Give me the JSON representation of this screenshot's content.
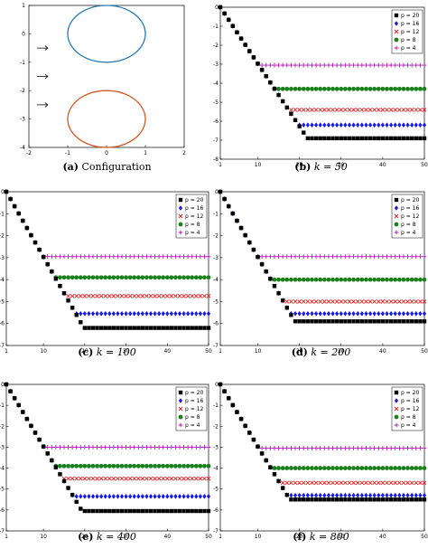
{
  "captions": [
    {
      "letter": "(a)",
      "text": "Configuration",
      "math": ""
    },
    {
      "letter": "(b)",
      "text": "",
      "math": "k = 50"
    },
    {
      "letter": "(c)",
      "text": "",
      "math": "k = 100"
    },
    {
      "letter": "(d)",
      "text": "",
      "math": "k = 200"
    },
    {
      "letter": "(e)",
      "text": "",
      "math": "k = 400"
    },
    {
      "letter": "(f)",
      "text": "",
      "math": "k = 800"
    }
  ],
  "legend_labels": [
    "p = 20",
    "p = 16",
    "p = 12",
    "p = 8",
    "p = 4"
  ],
  "colors": {
    "p20": "#000000",
    "p16": "#1a1ae6",
    "p12": "#e61a1a",
    "p8": "#1a801a",
    "p4": "#b319b3",
    "circle_top": "#2a7ab0",
    "circle_bottom": "#d05a28",
    "axis": "#000000"
  },
  "chart_data": [
    {
      "type": "scatter",
      "title": "Configuration",
      "xlim": [
        -2,
        2
      ],
      "ylim": [
        -4,
        1
      ],
      "xticks": [
        -2,
        -1,
        0,
        1,
        2
      ],
      "yticks": [
        1,
        0,
        -1,
        -2,
        -3,
        -4
      ],
      "circles": [
        {
          "name": "top",
          "cx": 0,
          "cy": 0,
          "r": 1
        },
        {
          "name": "bottom",
          "cx": 0,
          "cy": -3,
          "r": 1
        }
      ],
      "arrows": [
        {
          "x": -1.7,
          "y": -0.5
        },
        {
          "x": -1.7,
          "y": -1.5
        },
        {
          "x": -1.7,
          "y": -2.5
        }
      ]
    },
    {
      "type": "scatter",
      "k": 50,
      "xlim": [
        1,
        50
      ],
      "ylim": [
        -8,
        0
      ],
      "xticks": [
        1,
        10,
        20,
        30,
        40,
        50
      ],
      "yticks": [
        0,
        -1,
        -2,
        -3,
        -4,
        -5,
        -6,
        -7,
        -8
      ],
      "series": [
        {
          "name": "p = 20",
          "plateau": -6.9,
          "knee_at": 24
        },
        {
          "name": "p = 16",
          "plateau": -6.2,
          "knee_at": 22
        },
        {
          "name": "p = 12",
          "plateau": -5.4,
          "knee_at": 20
        },
        {
          "name": "p = 8",
          "plateau": -4.3,
          "knee_at": 15
        },
        {
          "name": "p = 4",
          "plateau": -3.05,
          "knee_at": 11
        }
      ],
      "initial_y": 0,
      "slope_per_step": -0.33
    },
    {
      "type": "scatter",
      "k": 100,
      "xlim": [
        1,
        50
      ],
      "ylim": [
        -7,
        0
      ],
      "xticks": [
        1,
        10,
        20,
        30,
        40,
        50
      ],
      "yticks": [
        0,
        -1,
        -2,
        -3,
        -4,
        -5,
        -6,
        -7
      ],
      "series": [
        {
          "name": "p = 20",
          "plateau": -6.2,
          "knee_at": 22
        },
        {
          "name": "p = 16",
          "plateau": -5.55,
          "knee_at": 19
        },
        {
          "name": "p = 12",
          "plateau": -4.75,
          "knee_at": 16
        },
        {
          "name": "p = 8",
          "plateau": -3.9,
          "knee_at": 13
        },
        {
          "name": "p = 4",
          "plateau": -2.95,
          "knee_at": 10
        }
      ],
      "initial_y": 0,
      "slope_per_step": -0.33
    },
    {
      "type": "scatter",
      "k": 200,
      "xlim": [
        1,
        50
      ],
      "ylim": [
        -7,
        0
      ],
      "xticks": [
        1,
        10,
        20,
        30,
        40,
        50
      ],
      "yticks": [
        0,
        -1,
        -2,
        -3,
        -4,
        -5,
        -6,
        -7
      ],
      "series": [
        {
          "name": "p = 20",
          "plateau": -5.9,
          "knee_at": 20
        },
        {
          "name": "p = 16",
          "plateau": -5.55,
          "knee_at": 19
        },
        {
          "name": "p = 12",
          "plateau": -5.0,
          "knee_at": 17
        },
        {
          "name": "p = 8",
          "plateau": -4.0,
          "knee_at": 14
        },
        {
          "name": "p = 4",
          "plateau": -2.95,
          "knee_at": 10
        }
      ],
      "initial_y": 0,
      "slope_per_step": -0.33
    },
    {
      "type": "scatter",
      "k": 400,
      "xlim": [
        1,
        50
      ],
      "ylim": [
        -7,
        0
      ],
      "xticks": [
        1,
        10,
        20,
        30,
        40,
        50
      ],
      "yticks": [
        0,
        -1,
        -2,
        -3,
        -4,
        -5,
        -6,
        -7
      ],
      "series": [
        {
          "name": "p = 20",
          "plateau": -6.05,
          "knee_at": 20
        },
        {
          "name": "p = 16",
          "plateau": -5.35,
          "knee_at": 18
        },
        {
          "name": "p = 12",
          "plateau": -4.5,
          "knee_at": 16
        },
        {
          "name": "p = 8",
          "plateau": -3.9,
          "knee_at": 13
        },
        {
          "name": "p = 4",
          "plateau": -3.0,
          "knee_at": 10
        }
      ],
      "initial_y": 0,
      "slope_per_step": -0.33
    },
    {
      "type": "scatter",
      "k": 800,
      "xlim": [
        1,
        50
      ],
      "ylim": [
        -7,
        0
      ],
      "xticks": [
        1,
        10,
        20,
        30,
        40,
        50
      ],
      "yticks": [
        0,
        -1,
        -2,
        -3,
        -4,
        -5,
        -6,
        -7
      ],
      "series": [
        {
          "name": "p = 20",
          "plateau": -5.5,
          "knee_at": 19
        },
        {
          "name": "p = 16",
          "plateau": -5.3,
          "knee_at": 18
        },
        {
          "name": "p = 12",
          "plateau": -4.7,
          "knee_at": 16
        },
        {
          "name": "p = 8",
          "plateau": -4.0,
          "knee_at": 14
        },
        {
          "name": "p = 4",
          "plateau": -3.05,
          "knee_at": 10
        }
      ],
      "initial_y": 0,
      "slope_per_step": -0.33
    }
  ]
}
